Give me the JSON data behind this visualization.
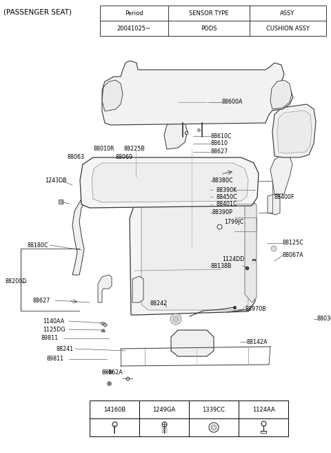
{
  "bg_color": "#ffffff",
  "line_color": "#333333",
  "text_color": "#000000",
  "title": "(PASSENGER SEAT)",
  "table_header": [
    "Period",
    "SENSOR TYPE",
    "ASSY"
  ],
  "table_row": [
    "20041025~",
    "PODS",
    "CUSHION ASSY"
  ],
  "parts_table_header": [
    "14160B",
    "1249GA",
    "1339CC",
    "1124AA"
  ],
  "fontsize_title": 7.5,
  "fontsize_label": 5.8,
  "fontsize_table": 6.0
}
